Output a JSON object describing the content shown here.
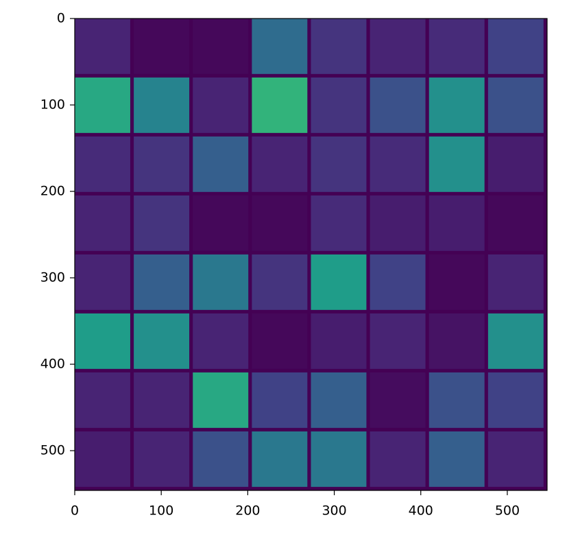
{
  "chart_data": {
    "type": "image",
    "colormap": "viridis",
    "xlim": [
      0,
      546
    ],
    "ylim": [
      546,
      0
    ],
    "xticks": [
      0,
      100,
      200,
      300,
      400,
      500
    ],
    "yticks": [
      0,
      100,
      200,
      300,
      400,
      500
    ],
    "values": [
      [
        0.1,
        0.02,
        0.02,
        0.35,
        0.15,
        0.1,
        0.12,
        0.2
      ],
      [
        0.6,
        0.45,
        0.1,
        0.65,
        0.15,
        0.25,
        0.5,
        0.25
      ],
      [
        0.12,
        0.15,
        0.3,
        0.1,
        0.15,
        0.12,
        0.5,
        0.08
      ],
      [
        0.1,
        0.15,
        0.02,
        0.02,
        0.12,
        0.08,
        0.08,
        0.02
      ],
      [
        0.1,
        0.3,
        0.4,
        0.15,
        0.55,
        0.2,
        0.02,
        0.1
      ],
      [
        0.55,
        0.5,
        0.1,
        0.02,
        0.08,
        0.1,
        0.05,
        0.5
      ],
      [
        0.1,
        0.1,
        0.6,
        0.2,
        0.3,
        0.03,
        0.25,
        0.2
      ],
      [
        0.08,
        0.1,
        0.25,
        0.4,
        0.4,
        0.1,
        0.3,
        0.1
      ]
    ]
  }
}
